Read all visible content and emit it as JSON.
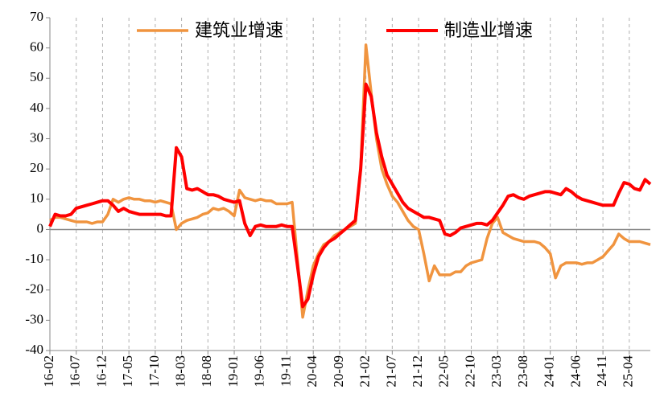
{
  "chart_data": {
    "type": "line",
    "categories": [
      "16-02",
      null,
      null,
      null,
      null,
      "16-07",
      null,
      null,
      null,
      null,
      "16-12",
      null,
      null,
      null,
      null,
      "17-05",
      null,
      null,
      null,
      null,
      "17-10",
      null,
      null,
      null,
      null,
      "18-03",
      null,
      null,
      null,
      null,
      "18-08",
      null,
      null,
      null,
      null,
      "19-01",
      null,
      null,
      null,
      null,
      "19-06",
      null,
      null,
      null,
      null,
      "19-11",
      null,
      null,
      null,
      null,
      "20-04",
      null,
      null,
      null,
      null,
      "20-09",
      null,
      null,
      null,
      null,
      "21-02",
      null,
      null,
      null,
      null,
      "21-07",
      null,
      null,
      null,
      null,
      "21-12",
      null,
      null,
      null,
      null,
      "22-05",
      null,
      null,
      null,
      null,
      "22-10",
      null,
      null,
      null,
      null,
      "23-03",
      null,
      null,
      null,
      null,
      "23-08",
      null,
      null,
      null,
      null,
      "24-01",
      null,
      null,
      null,
      null,
      "24-06",
      null,
      null,
      null,
      null,
      "24-11",
      null,
      null,
      null,
      null,
      "25-04",
      null,
      null,
      null,
      null
    ],
    "series": [
      {
        "name": "建筑业增速",
        "color": "#f0943f",
        "values": [
          3,
          4,
          4,
          3.5,
          3,
          2.5,
          2.5,
          2.5,
          2,
          2.5,
          2.5,
          5,
          10,
          9,
          10,
          10.5,
          10,
          10,
          9.5,
          9.5,
          9,
          9.5,
          9,
          8.5,
          0,
          2,
          3,
          3.5,
          4,
          5,
          5.5,
          7,
          6.5,
          7,
          6,
          4.5,
          13,
          10.5,
          10,
          9.5,
          10,
          9.5,
          9.5,
          8.5,
          8.5,
          8.5,
          9,
          -10,
          -29,
          -20,
          -12,
          -8,
          -5,
          -4,
          -2,
          -1,
          0,
          1,
          2,
          20,
          61,
          45,
          30,
          20,
          15,
          11,
          9,
          6,
          3,
          1,
          0,
          -8,
          -17,
          -12,
          -15,
          -15,
          -15,
          -14,
          -14,
          -12,
          -11,
          -10.5,
          -10,
          -3,
          2,
          4,
          -1,
          -2,
          -3,
          -3.5,
          -4,
          -4,
          -4,
          -4.5,
          -6,
          -8,
          -16,
          -12,
          -11,
          -11,
          -11,
          -11.5,
          -11,
          -11,
          -10,
          -9,
          -7,
          -5,
          -1.5,
          -3,
          -4,
          -4,
          -4,
          -4.5,
          -5
        ]
      },
      {
        "name": "制造业增速",
        "color": "#ff0000",
        "values": [
          1,
          5,
          4.5,
          4.5,
          5,
          7,
          7.5,
          8,
          8.5,
          9,
          9.5,
          9.5,
          8,
          6,
          7,
          6,
          5.5,
          5,
          5,
          5,
          5,
          5,
          4.5,
          4.5,
          27,
          24,
          13.5,
          13,
          13.5,
          12.5,
          11.5,
          11.5,
          11,
          10,
          9.5,
          9,
          9.5,
          2,
          -2,
          1,
          1.5,
          1,
          1,
          1,
          1.5,
          1,
          1,
          -12,
          -25.5,
          -23,
          -15,
          -9,
          -6,
          -4,
          -3,
          -1.5,
          0,
          1.5,
          3,
          20,
          48,
          44,
          32,
          24,
          18,
          15,
          12,
          9,
          7,
          6,
          5,
          4,
          4,
          3.5,
          3,
          -1.5,
          -2,
          -1,
          0.5,
          1,
          1.5,
          2,
          2,
          1.5,
          3,
          5.5,
          8,
          11,
          11.5,
          10.5,
          10,
          11,
          11.5,
          12,
          12.5,
          12.5,
          12,
          11.5,
          13.5,
          12.5,
          11,
          10,
          9.5,
          9,
          8.5,
          8,
          8,
          8,
          12,
          15.5,
          15,
          13.5,
          13,
          16.5,
          15
        ]
      }
    ],
    "ylim": [
      -40,
      70
    ],
    "yticks": [
      -40,
      -30,
      -20,
      -10,
      0,
      10,
      20,
      30,
      40,
      50,
      60,
      70
    ],
    "grid": true,
    "legend": "top"
  }
}
